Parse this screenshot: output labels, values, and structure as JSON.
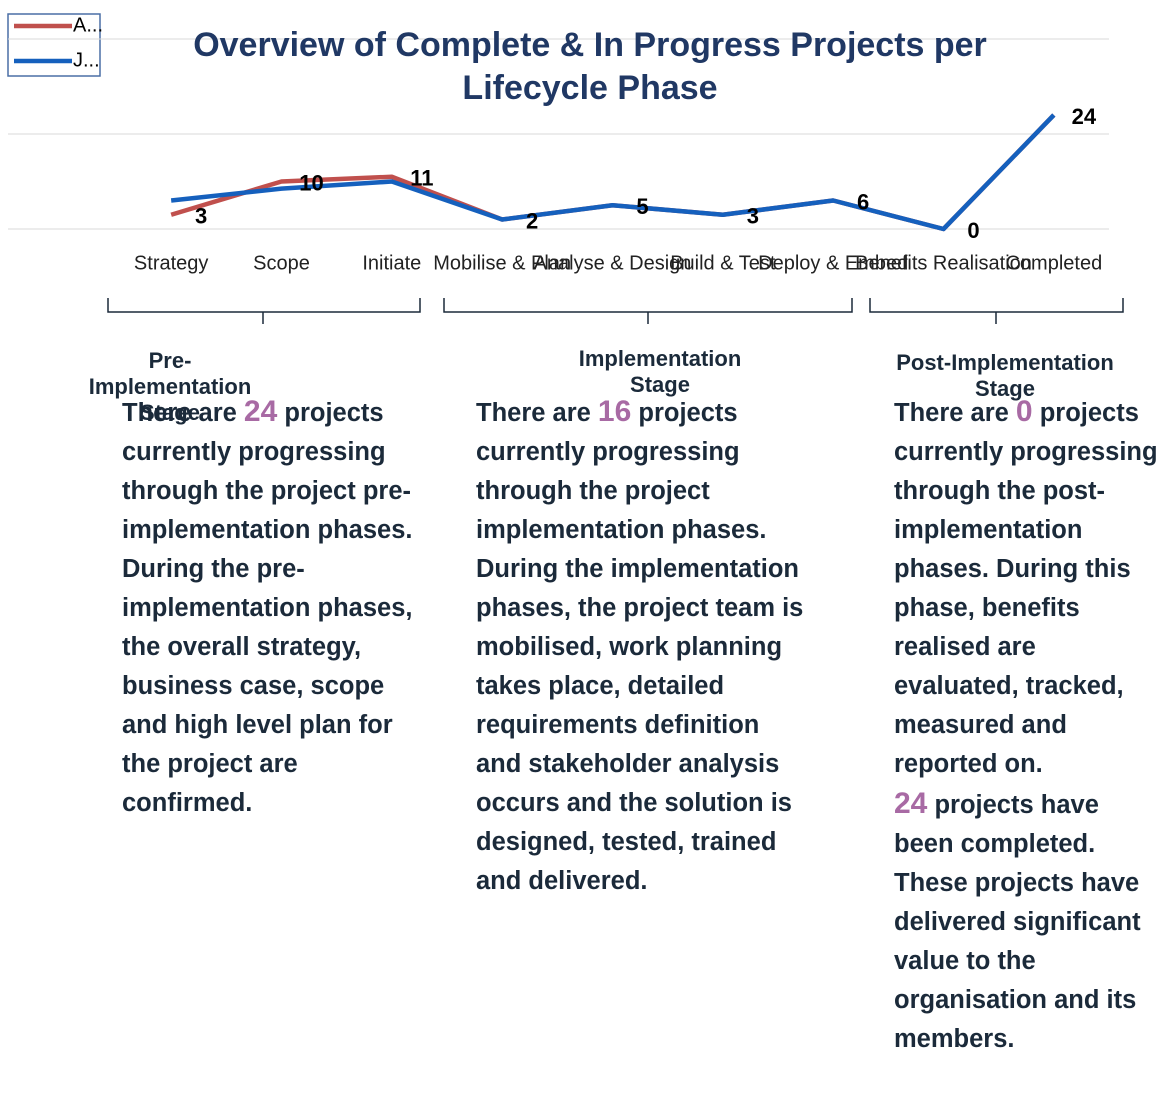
{
  "chart_data": {
    "type": "line",
    "title": "Overview of Complete & In Progress Projects per Lifecycle Phase",
    "categories": [
      "Strategy",
      "Scope",
      "Initiate",
      "Mobilise & Plan",
      "Analyse & Design",
      "Build & Test",
      "Deploy & Embed",
      "Benefits Realisation",
      "Completed"
    ],
    "series": [
      {
        "name": "A...",
        "color": "#c0504d",
        "values": [
          3,
          10,
          11,
          2,
          5,
          3,
          6,
          0,
          24
        ],
        "labels": true
      },
      {
        "name": "J...",
        "color": "#1560bd",
        "values": [
          6,
          8.5,
          10,
          2,
          5,
          3,
          6,
          0,
          24
        ]
      }
    ],
    "ylim": [
      0,
      40
    ],
    "yticks": [
      0,
      20,
      40
    ],
    "grid": true,
    "legend": "top-left"
  },
  "notes": [
    {
      "stage": "Pre-Implementation Stage",
      "lead": "There are",
      "count": 24,
      "rest": "projects currently progressing through the project pre-implementation phases.",
      "more": "During the pre-implementation phases, the overall strategy, business case, scope and high level plan for the project are confirmed."
    },
    {
      "stage": "Implementation Stage",
      "lead": "There are",
      "count": 16,
      "rest": "projects currently progressing through the project implementation phases.",
      "more": "During the implementation phases, the project team is mobilised, work planning takes place, detailed requirements definition and stakeholder analysis occurs and the solution is designed, tested, trained and delivered."
    },
    {
      "stage": "Post-Implementation Stage",
      "lead": "There are",
      "count": 0,
      "rest": "projects currently progressing through the post-implementation phases. During this phase, benefits realised are evaluated, tracked, measured and reported on.",
      "count2": 24,
      "rest2": "projects have been completed. These projects have delivered significant value to the organisation and its members."
    }
  ]
}
